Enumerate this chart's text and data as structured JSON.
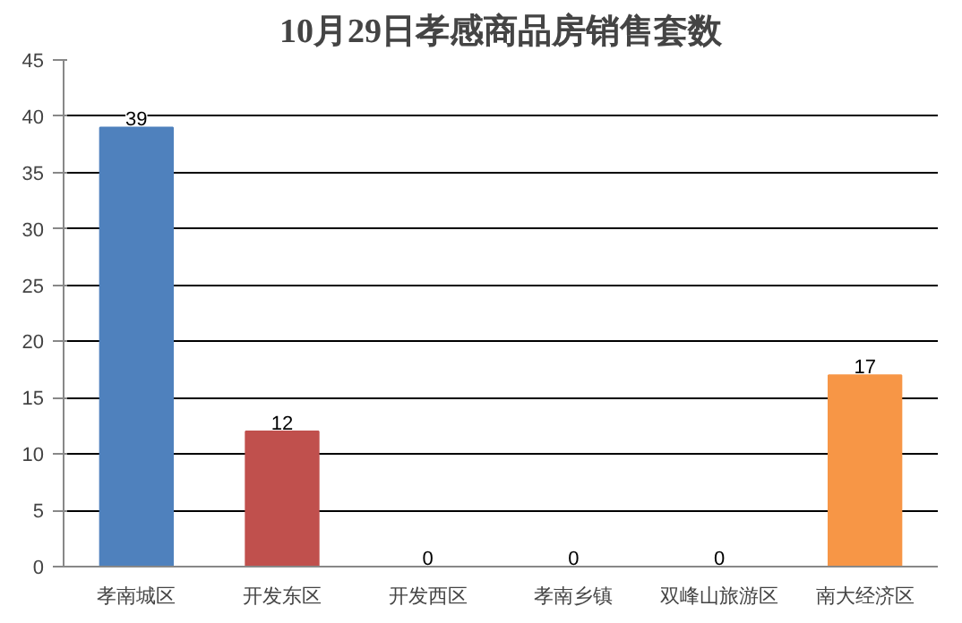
{
  "chart_data": {
    "type": "bar",
    "title": "10月29日孝感商品房销售套数",
    "categories": [
      "孝南城区",
      "开发东区",
      "开发西区",
      "孝南乡镇",
      "双峰山旅游区",
      "南大经济区"
    ],
    "values": [
      39,
      12,
      0,
      0,
      0,
      17
    ],
    "colors": [
      "#4f81bd",
      "#c0504d",
      "#9bbb59",
      "#8064a2",
      "#4bacc6",
      "#f79646"
    ],
    "ylim": [
      0,
      45
    ],
    "yticks": [
      0,
      5,
      10,
      15,
      20,
      25,
      30,
      35,
      40,
      45
    ],
    "grid": "y",
    "data_labels": true
  }
}
